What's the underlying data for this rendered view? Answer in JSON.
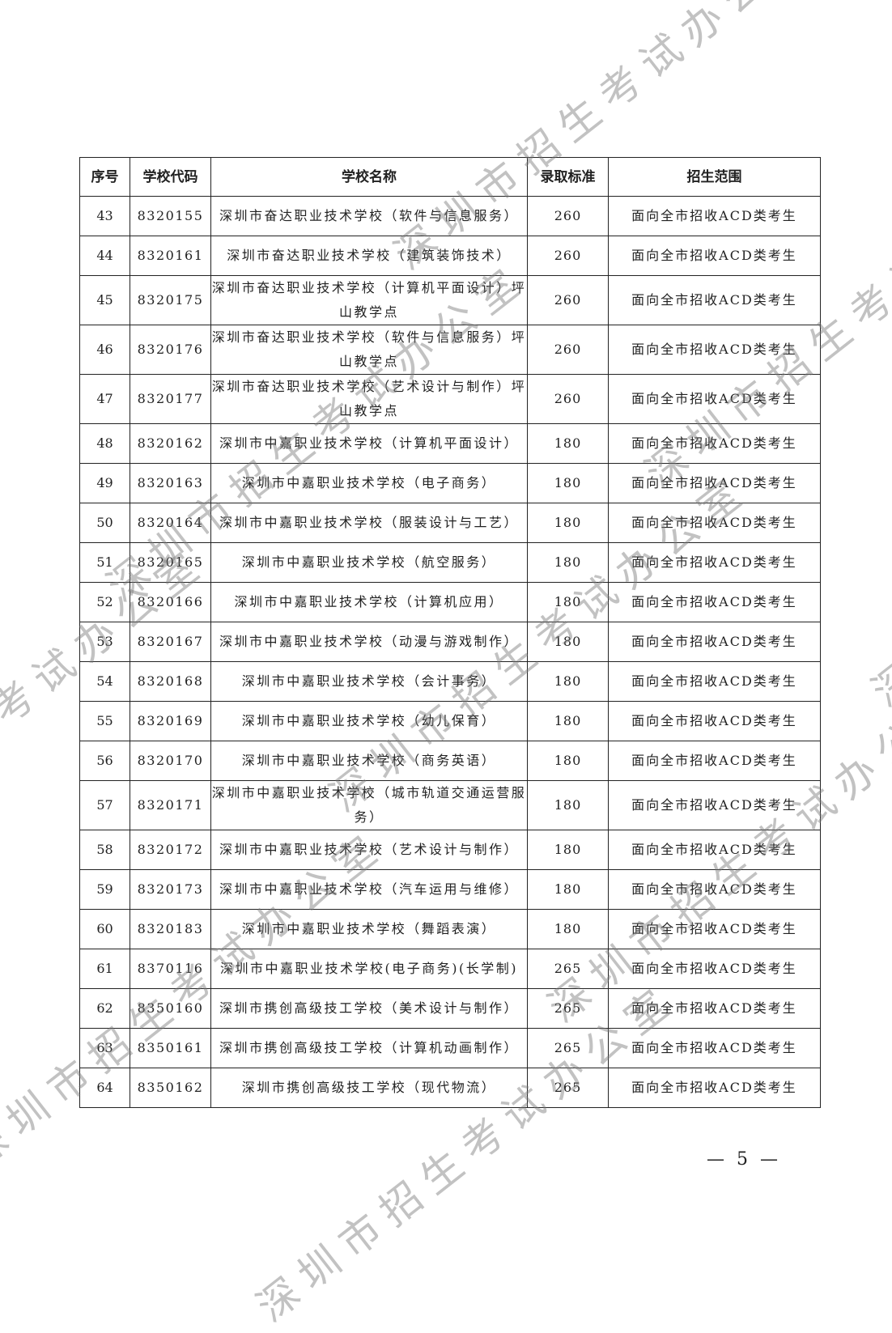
{
  "table": {
    "headers": [
      "序号",
      "学校代码",
      "学校名称",
      "录取标准",
      "招生范围"
    ],
    "rows": [
      [
        "43",
        "8320155",
        "深圳市奋达职业技术学校（软件与信息服务）",
        "260",
        "面向全市招收ACD类考生"
      ],
      [
        "44",
        "8320161",
        "深圳市奋达职业技术学校（建筑装饰技术）",
        "260",
        "面向全市招收ACD类考生"
      ],
      [
        "45",
        "8320175",
        "深圳市奋达职业技术学校（计算机平面设计）坪山教学点",
        "260",
        "面向全市招收ACD类考生"
      ],
      [
        "46",
        "8320176",
        "深圳市奋达职业技术学校（软件与信息服务）坪山教学点",
        "260",
        "面向全市招收ACD类考生"
      ],
      [
        "47",
        "8320177",
        "深圳市奋达职业技术学校（艺术设计与制作）坪山教学点",
        "260",
        "面向全市招收ACD类考生"
      ],
      [
        "48",
        "8320162",
        "深圳市中嘉职业技术学校（计算机平面设计）",
        "180",
        "面向全市招收ACD类考生"
      ],
      [
        "49",
        "8320163",
        "深圳市中嘉职业技术学校（电子商务）",
        "180",
        "面向全市招收ACD类考生"
      ],
      [
        "50",
        "8320164",
        "深圳市中嘉职业技术学校（服装设计与工艺）",
        "180",
        "面向全市招收ACD类考生"
      ],
      [
        "51",
        "8320165",
        "深圳市中嘉职业技术学校（航空服务）",
        "180",
        "面向全市招收ACD类考生"
      ],
      [
        "52",
        "8320166",
        "深圳市中嘉职业技术学校（计算机应用）",
        "180",
        "面向全市招收ACD类考生"
      ],
      [
        "53",
        "8320167",
        "深圳市中嘉职业技术学校（动漫与游戏制作）",
        "180",
        "面向全市招收ACD类考生"
      ],
      [
        "54",
        "8320168",
        "深圳市中嘉职业技术学校（会计事务）",
        "180",
        "面向全市招收ACD类考生"
      ],
      [
        "55",
        "8320169",
        "深圳市中嘉职业技术学校（幼儿保育）",
        "180",
        "面向全市招收ACD类考生"
      ],
      [
        "56",
        "8320170",
        "深圳市中嘉职业技术学校（商务英语）",
        "180",
        "面向全市招收ACD类考生"
      ],
      [
        "57",
        "8320171",
        "深圳市中嘉职业技术学校（城市轨道交通运营服务）",
        "180",
        "面向全市招收ACD类考生"
      ],
      [
        "58",
        "8320172",
        "深圳市中嘉职业技术学校（艺术设计与制作）",
        "180",
        "面向全市招收ACD类考生"
      ],
      [
        "59",
        "8320173",
        "深圳市中嘉职业技术学校（汽车运用与维修）",
        "180",
        "面向全市招收ACD类考生"
      ],
      [
        "60",
        "8320183",
        "深圳市中嘉职业技术学校（舞蹈表演）",
        "180",
        "面向全市招收ACD类考生"
      ],
      [
        "61",
        "8370116",
        "深圳市中嘉职业技术学校(电子商务)(长学制)",
        "265",
        "面向全市招收ACD类考生"
      ],
      [
        "62",
        "8350160",
        "深圳市携创高级技工学校（美术设计与制作）",
        "265",
        "面向全市招收ACD类考生"
      ],
      [
        "63",
        "8350161",
        "深圳市携创高级技工学校（计算机动画制作）",
        "265",
        "面向全市招收ACD类考生"
      ],
      [
        "64",
        "8350162",
        "深圳市携创高级技工学校（现代物流）",
        "265",
        "面向全市招收ACD类考生"
      ]
    ]
  },
  "page_number": "— 5 —",
  "watermark": "深圳市招生考试办公室"
}
